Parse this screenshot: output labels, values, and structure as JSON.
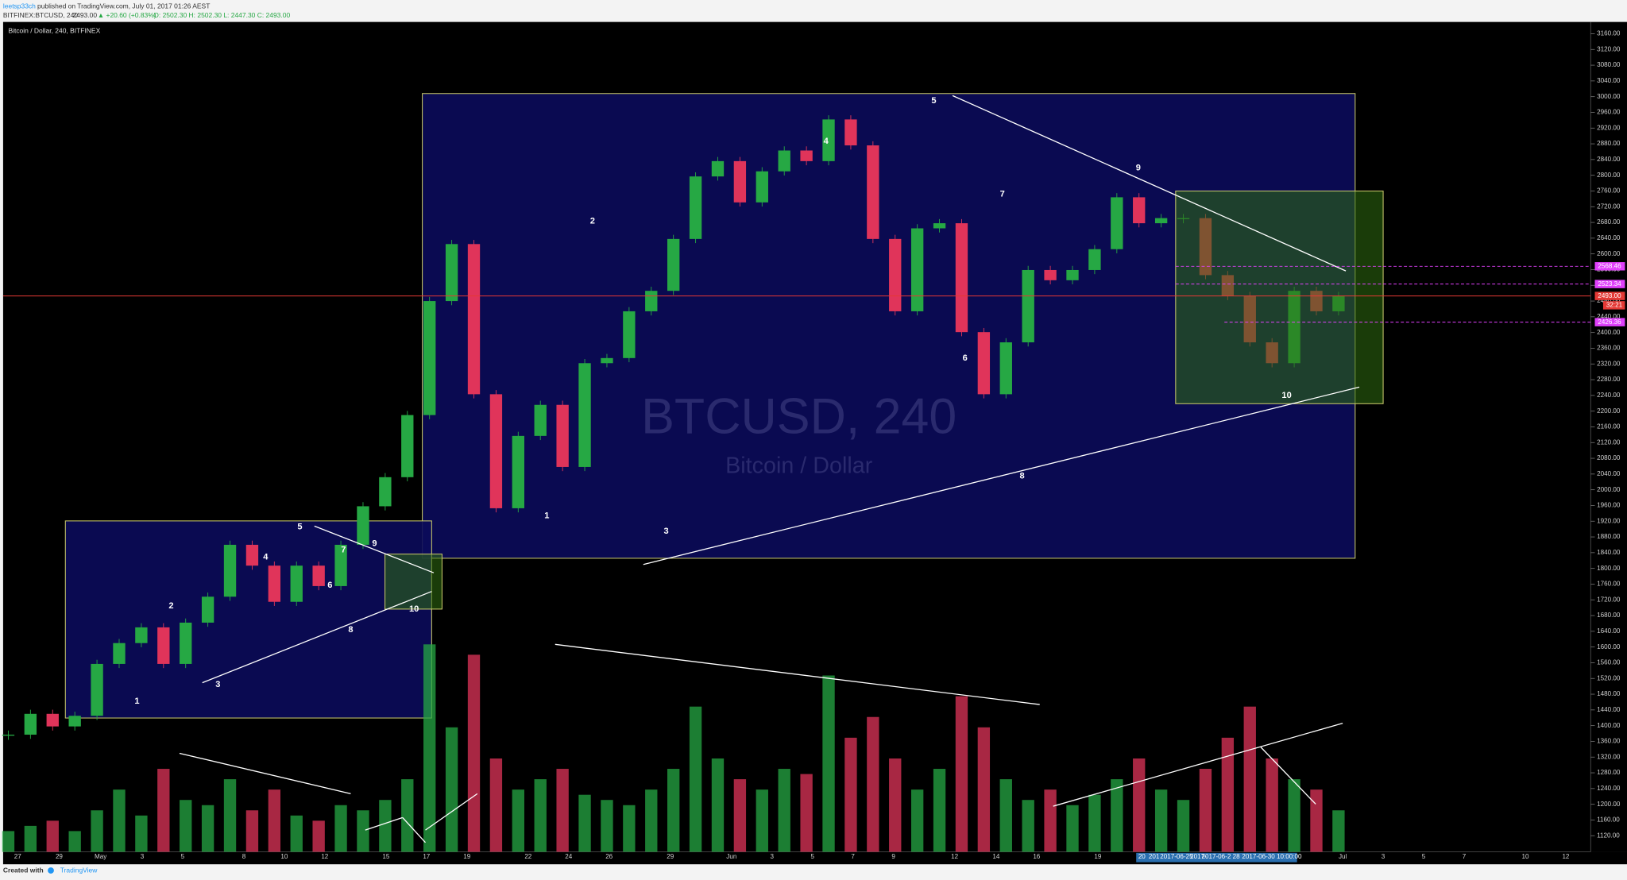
{
  "header": {
    "publisher": "leetsp33ch",
    "published": "published on TradingView.com, July 01, 2017 01:26 AEST",
    "symbol": "BITFINEX:BTCUSD, 240",
    "last": "2493.00",
    "change": "▲ +20.60 (+0.83%)",
    "ohlc": "O: 2502.30 H: 2502.30 L: 2447.30 C: 2493.00"
  },
  "chart_data": {
    "type": "candlestick",
    "title": "Bitcoin / Dollar, 240, BITFINEX",
    "watermark": "BTCUSD, 240",
    "watermark_subtitle": "Bitcoin / Dollar",
    "up_color": "#26a844",
    "down_color": "#e0345a",
    "closes": [
      1377,
      1430,
      1398,
      1425,
      1557,
      1610,
      1650,
      1557,
      1662,
      1728,
      1860,
      1807,
      1715,
      1807,
      1755,
      1860,
      1958,
      2032,
      2190,
      2480,
      2625,
      2243,
      1953,
      2137,
      2216,
      2058,
      2322,
      2335,
      2454,
      2506,
      2638,
      2797,
      2836,
      2731,
      2810,
      2863,
      2836,
      2942,
      2876,
      2638,
      2454,
      2665,
      2678,
      2401,
      2243,
      2375,
      2559,
      2533,
      2559,
      2612,
      2744,
      2678,
      2691,
      2691,
      2546,
      2493,
      2375,
      2322,
      2506,
      2454,
      2493
    ],
    "volumes": [
      20,
      25,
      30,
      20,
      40,
      60,
      35,
      80,
      50,
      45,
      70,
      40,
      60,
      35,
      30,
      45,
      40,
      50,
      70,
      200,
      120,
      190,
      90,
      60,
      70,
      80,
      55,
      50,
      45,
      60,
      80,
      140,
      90,
      70,
      60,
      80,
      75,
      170,
      110,
      130,
      90,
      60,
      80,
      150,
      120,
      70,
      50,
      60,
      45,
      55,
      70,
      90,
      60,
      50,
      80,
      110,
      140,
      90,
      70,
      60,
      40
    ],
    "ylim": [
      1079,
      3190
    ],
    "yticks": [
      {
        "value": 3160,
        "label": "3160.00"
      },
      {
        "value": 3120,
        "label": "3120.00"
      },
      {
        "value": 3080,
        "label": "3080.00"
      },
      {
        "value": 3040,
        "label": "3040.00"
      },
      {
        "value": 3000,
        "label": "3000.00"
      },
      {
        "value": 2960,
        "label": "2960.00"
      },
      {
        "value": 2920,
        "label": "2920.00"
      },
      {
        "value": 2880,
        "label": "2880.00"
      },
      {
        "value": 2840,
        "label": "2840.00"
      },
      {
        "value": 2800,
        "label": "2800.00"
      },
      {
        "value": 2760,
        "label": "2760.00"
      },
      {
        "value": 2720,
        "label": "2720.00"
      },
      {
        "value": 2680,
        "label": "2680.00"
      },
      {
        "value": 2640,
        "label": "2640.00"
      },
      {
        "value": 2600,
        "label": "2600.00"
      },
      {
        "value": 2560,
        "label": "2560.00"
      },
      {
        "value": 2520,
        "label": "2520.00"
      },
      {
        "value": 2480,
        "label": "2480.00"
      },
      {
        "value": 2440,
        "label": "2440.00"
      },
      {
        "value": 2400,
        "label": "2400.00"
      },
      {
        "value": 2360,
        "label": "2360.00"
      },
      {
        "value": 2320,
        "label": "2320.00"
      },
      {
        "value": 2280,
        "label": "2280.00"
      },
      {
        "value": 2240,
        "label": "2240.00"
      },
      {
        "value": 2200,
        "label": "2200.00"
      },
      {
        "value": 2160,
        "label": "2160.00"
      },
      {
        "value": 2120,
        "label": "2120.00"
      },
      {
        "value": 2080,
        "label": "2080.00"
      },
      {
        "value": 2040,
        "label": "2040.00"
      },
      {
        "value": 2000,
        "label": "2000.00"
      },
      {
        "value": 1960,
        "label": "1960.00"
      },
      {
        "value": 1920,
        "label": "1920.00"
      },
      {
        "value": 1880,
        "label": "1880.00"
      },
      {
        "value": 1840,
        "label": "1840.00"
      },
      {
        "value": 1800,
        "label": "1800.00"
      },
      {
        "value": 1760,
        "label": "1760.00"
      },
      {
        "value": 1720,
        "label": "1720.00"
      },
      {
        "value": 1680,
        "label": "1680.00"
      },
      {
        "value": 1640,
        "label": "1640.00"
      },
      {
        "value": 1600,
        "label": "1600.00"
      },
      {
        "value": 1560,
        "label": "1560.00"
      },
      {
        "value": 1520,
        "label": "1520.00"
      },
      {
        "value": 1480,
        "label": "1480.00"
      },
      {
        "value": 1440,
        "label": "1440.00"
      },
      {
        "value": 1400,
        "label": "1400.00"
      },
      {
        "value": 1360,
        "label": "1360.00"
      },
      {
        "value": 1320,
        "label": "1320.00"
      },
      {
        "value": 1280,
        "label": "1280.00"
      },
      {
        "value": 1240,
        "label": "1240.00"
      },
      {
        "value": 1200,
        "label": "1200.00"
      },
      {
        "value": 1160,
        "label": "1160.00"
      },
      {
        "value": 1120,
        "label": "1120.00"
      }
    ],
    "price_levels": [
      {
        "value": 2568.46,
        "label": "2568.46",
        "color": "#e040fb"
      },
      {
        "value": 2523.34,
        "label": "2523.34",
        "color": "#e040fb"
      },
      {
        "value": 2493.0,
        "label": "2493.00",
        "color": "#e53935"
      },
      {
        "value": 2426.36,
        "label": "2426.36",
        "color": "#e040fb"
      }
    ],
    "countdown": "32:21",
    "date_labels": [
      "27",
      "29",
      "May",
      "3",
      "5",
      "8",
      "10",
      "12",
      "15",
      "17",
      "19",
      "22",
      "24",
      "26",
      "29",
      "Jun",
      "3",
      "5",
      "7",
      "9",
      "12",
      "14",
      "16",
      "19",
      "Jul",
      "3",
      "5",
      "7",
      "10",
      "12"
    ],
    "date_highlight": [
      "20",
      "201",
      "2017-06-25",
      "2017-",
      "2017-06-2",
      "28",
      "2017-06-30 10:00:00"
    ],
    "waves": [
      "1",
      "2",
      "3",
      "4",
      "5",
      "6",
      "7",
      "8",
      "9",
      "10",
      "1",
      "2",
      "3",
      "4",
      "5",
      "6",
      "7",
      "8",
      "9",
      "10"
    ]
  },
  "footer": {
    "created": "Created with",
    "brand": "TradingView"
  }
}
